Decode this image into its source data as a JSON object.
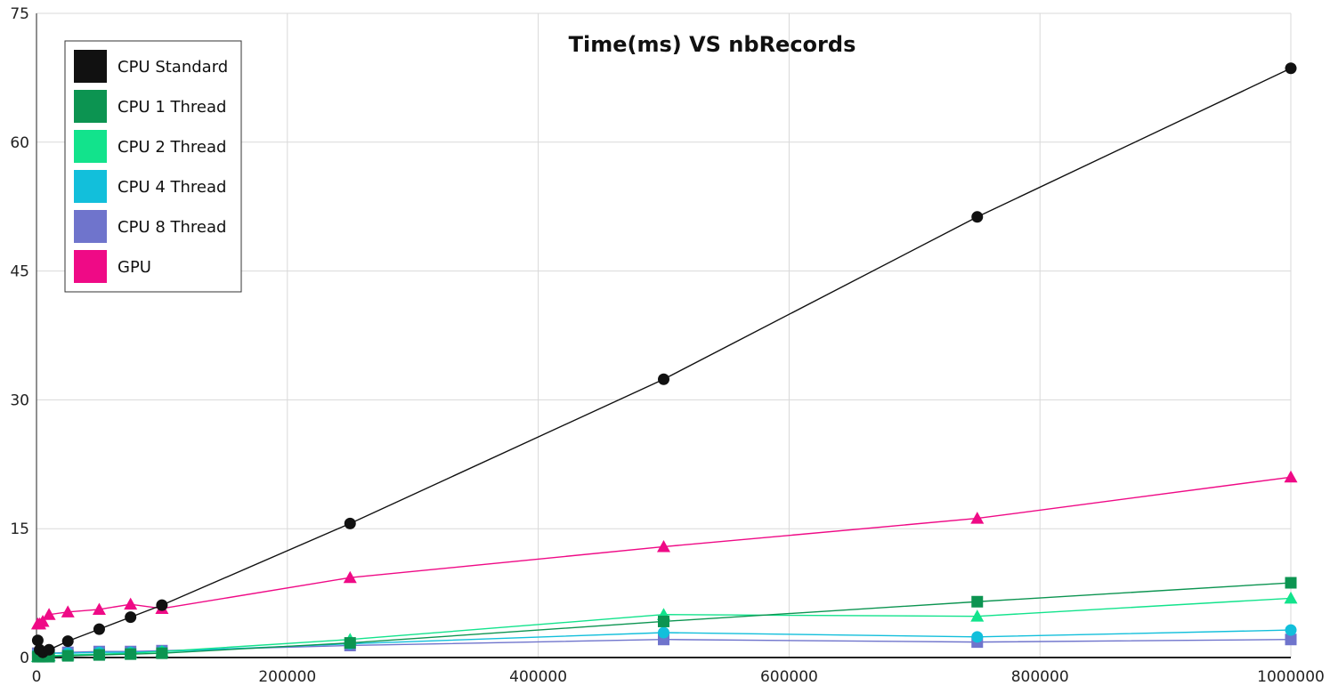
{
  "chart_data": {
    "type": "line",
    "title": "Time(ms) VS nbRecords",
    "xlabel": "",
    "ylabel": "",
    "xlim": [
      0,
      1000000
    ],
    "ylim": [
      0,
      75
    ],
    "x_ticks": [
      "0",
      "200000",
      "400000",
      "600000",
      "800000",
      "1000000"
    ],
    "y_ticks": [
      "0",
      "15",
      "30",
      "45",
      "60",
      "75"
    ],
    "grid": true,
    "legend_position": "top-left",
    "x": [
      1000,
      2500,
      5000,
      10000,
      25000,
      50000,
      75000,
      100000,
      250000,
      500000,
      750000,
      1000000
    ],
    "series": [
      {
        "name": "CPU Standard",
        "color": "#111111",
        "marker": "circle",
        "values": [
          2.0,
          0.9,
          0.6,
          0.9,
          1.9,
          3.3,
          4.7,
          6.1,
          15.6,
          32.4,
          51.3,
          68.6
        ]
      },
      {
        "name": "CPU 1 Thread",
        "color": "#0c9451",
        "marker": "square",
        "values": [
          0.1,
          0.1,
          0.1,
          0.1,
          0.2,
          0.3,
          0.4,
          0.5,
          1.7,
          4.2,
          6.5,
          8.7
        ]
      },
      {
        "name": "CPU 2 Thread",
        "color": "#12e38c",
        "marker": "triangle",
        "values": [
          0.1,
          0.1,
          0.1,
          0.2,
          0.3,
          0.4,
          0.5,
          0.7,
          2.1,
          5.0,
          4.8,
          6.9
        ]
      },
      {
        "name": "CPU 4 Thread",
        "color": "#12bfdb",
        "marker": "circle",
        "values": [
          0.5,
          0.5,
          0.5,
          0.5,
          0.5,
          0.6,
          0.6,
          0.7,
          1.6,
          2.9,
          2.4,
          3.2
        ]
      },
      {
        "name": "CPU 8 Thread",
        "color": "#6f74cc",
        "marker": "square",
        "values": [
          0.5,
          0.5,
          0.5,
          0.5,
          0.6,
          0.7,
          0.7,
          0.8,
          1.4,
          2.1,
          1.8,
          2.1
        ]
      },
      {
        "name": "GPU",
        "color": "#ef0a86",
        "marker": "triangle",
        "values": [
          3.9,
          3.9,
          4.2,
          5.0,
          5.3,
          5.6,
          6.2,
          5.7,
          9.3,
          12.9,
          16.2,
          21.0
        ]
      }
    ]
  }
}
